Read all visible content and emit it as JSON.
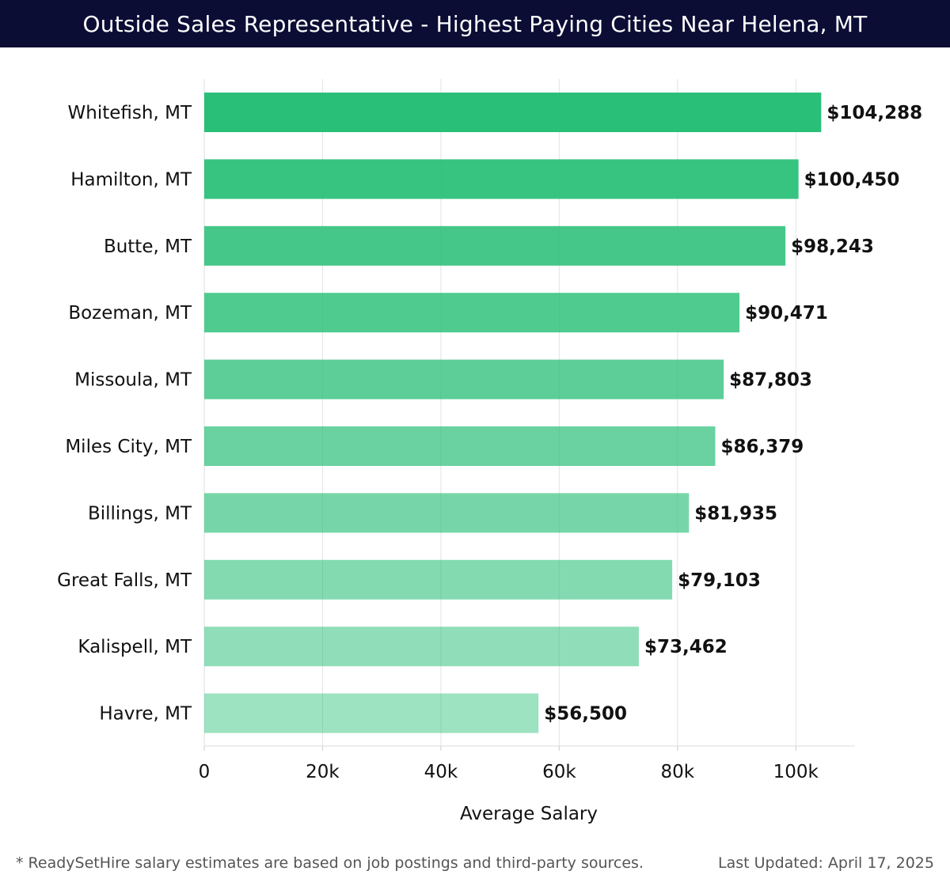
{
  "header": {
    "title": "Outside Sales Representative - Highest Paying Cities Near Helena, MT"
  },
  "chart_data": {
    "type": "bar",
    "orientation": "horizontal",
    "categories": [
      "Whitefish, MT",
      "Hamilton, MT",
      "Butte, MT",
      "Bozeman, MT",
      "Missoula, MT",
      "Miles City, MT",
      "Billings, MT",
      "Great Falls, MT",
      "Kalispell, MT",
      "Havre, MT"
    ],
    "values": [
      104288,
      100450,
      98243,
      90471,
      87803,
      86379,
      81935,
      79103,
      73462,
      56500
    ],
    "value_labels": [
      "$104,288",
      "$100,450",
      "$98,243",
      "$90,471",
      "$87,803",
      "$86,379",
      "$81,935",
      "$79,103",
      "$73,462",
      "$56,500"
    ],
    "xlabel": "Average Salary",
    "ylabel": "",
    "xlim": [
      0,
      110000
    ],
    "x_ticks": [
      0,
      20000,
      40000,
      60000,
      80000,
      100000
    ],
    "x_tick_labels": [
      "0",
      "20k",
      "40k",
      "60k",
      "80k",
      "100k"
    ],
    "grid": true,
    "bar_color": "#2abf78"
  },
  "footer": {
    "note": "* ReadySetHire salary estimates are based on job postings and third-party sources.",
    "updated": "Last Updated: April 17, 2025"
  }
}
